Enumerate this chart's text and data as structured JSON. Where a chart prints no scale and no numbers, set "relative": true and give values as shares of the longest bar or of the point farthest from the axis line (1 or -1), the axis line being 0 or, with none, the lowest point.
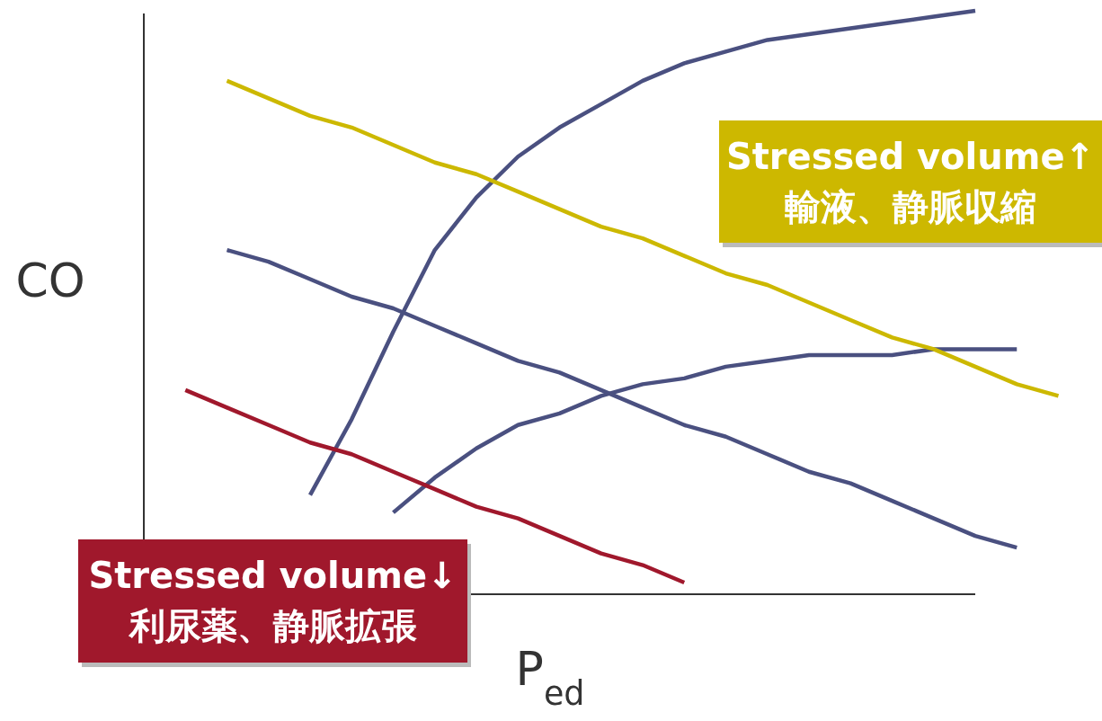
{
  "chart_data": {
    "type": "line",
    "relative": true,
    "xlabel": "P$_{ed}$",
    "ylabel": "CO",
    "line_style": "solid",
    "marker": "none",
    "grid": false,
    "categories": [
      null,
      null,
      null,
      null,
      null,
      null,
      null,
      null,
      null,
      null,
      null,
      null,
      null,
      null,
      null,
      null,
      null,
      null,
      null,
      null,
      null,
      null,
      null
    ],
    "series": [
      {
        "color": "#4a5080",
        "values": [
          null,
          null,
          null,
          null,
          0.17,
          0.3,
          0.45,
          0.59,
          0.68,
          0.75,
          0.8,
          0.84,
          0.88,
          0.91,
          0.93,
          0.95,
          0.96,
          0.97,
          0.98,
          0.99,
          1.0,
          null,
          null
        ]
      },
      {
        "color": "#4a5080",
        "values": [
          null,
          null,
          null,
          null,
          null,
          null,
          0.14,
          0.2,
          0.25,
          0.29,
          0.31,
          0.34,
          0.36,
          0.37,
          0.39,
          0.4,
          0.41,
          0.41,
          0.41,
          0.42,
          0.42,
          0.42,
          null
        ]
      },
      {
        "color": "#ccb800",
        "values": [
          null,
          null,
          0.88,
          0.85,
          0.82,
          0.8,
          0.77,
          0.74,
          0.72,
          0.69,
          0.66,
          0.63,
          0.61,
          0.58,
          0.55,
          0.53,
          0.5,
          0.47,
          0.44,
          0.42,
          0.39,
          0.36,
          0.34
        ]
      },
      {
        "color": "#4a5080",
        "values": [
          null,
          null,
          0.59,
          0.57,
          0.54,
          0.51,
          0.49,
          0.46,
          0.43,
          0.4,
          0.38,
          0.35,
          0.32,
          0.29,
          0.27,
          0.24,
          0.21,
          0.19,
          0.16,
          0.13,
          0.1,
          0.08,
          null
        ]
      },
      {
        "color": "#a0182c",
        "values": [
          null,
          0.35,
          0.32,
          0.29,
          0.26,
          0.24,
          0.21,
          0.18,
          0.15,
          0.13,
          0.1,
          0.07,
          0.05,
          0.02,
          null,
          null,
          null,
          null,
          null,
          null,
          null,
          null,
          null
        ]
      }
    ],
    "annotations": [
      "Stressed volume↑\n輸液、静脈収縮",
      "Stressed volume↓\n利尿薬、静脈拡張"
    ]
  }
}
